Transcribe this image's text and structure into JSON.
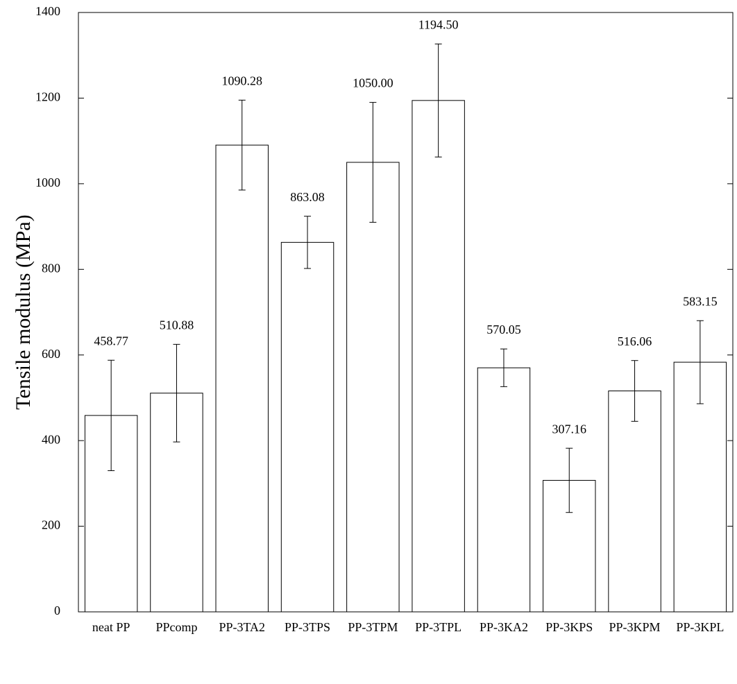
{
  "chart_data": {
    "type": "bar",
    "y_label": "Tensile modulus (MPa)",
    "categories": [
      "neat PP",
      "PPcomp",
      "PP-3TA2",
      "PP-3TPS",
      "PP-3TPM",
      "PP-3TPL",
      "PP-3KA2",
      "PP-3KPS",
      "PP-3KPM",
      "PP-3KPL"
    ],
    "values": [
      458.77,
      510.88,
      1090.28,
      863.08,
      1050.0,
      1194.5,
      570.05,
      307.16,
      516.06,
      583.15
    ],
    "value_labels": [
      "458.77",
      "510.88",
      "1090.28",
      "863.08",
      "1050.00",
      "1194.50",
      "570.05",
      "307.16",
      "516.06",
      "583.15"
    ],
    "errors": [
      129,
      114,
      105,
      61,
      140,
      132,
      44,
      75,
      71,
      97
    ],
    "color": "#ffffff",
    "ylim": [
      0,
      1400
    ],
    "yticks": [
      0,
      200,
      400,
      600,
      800,
      1000,
      1200,
      1400
    ],
    "grid": false
  }
}
